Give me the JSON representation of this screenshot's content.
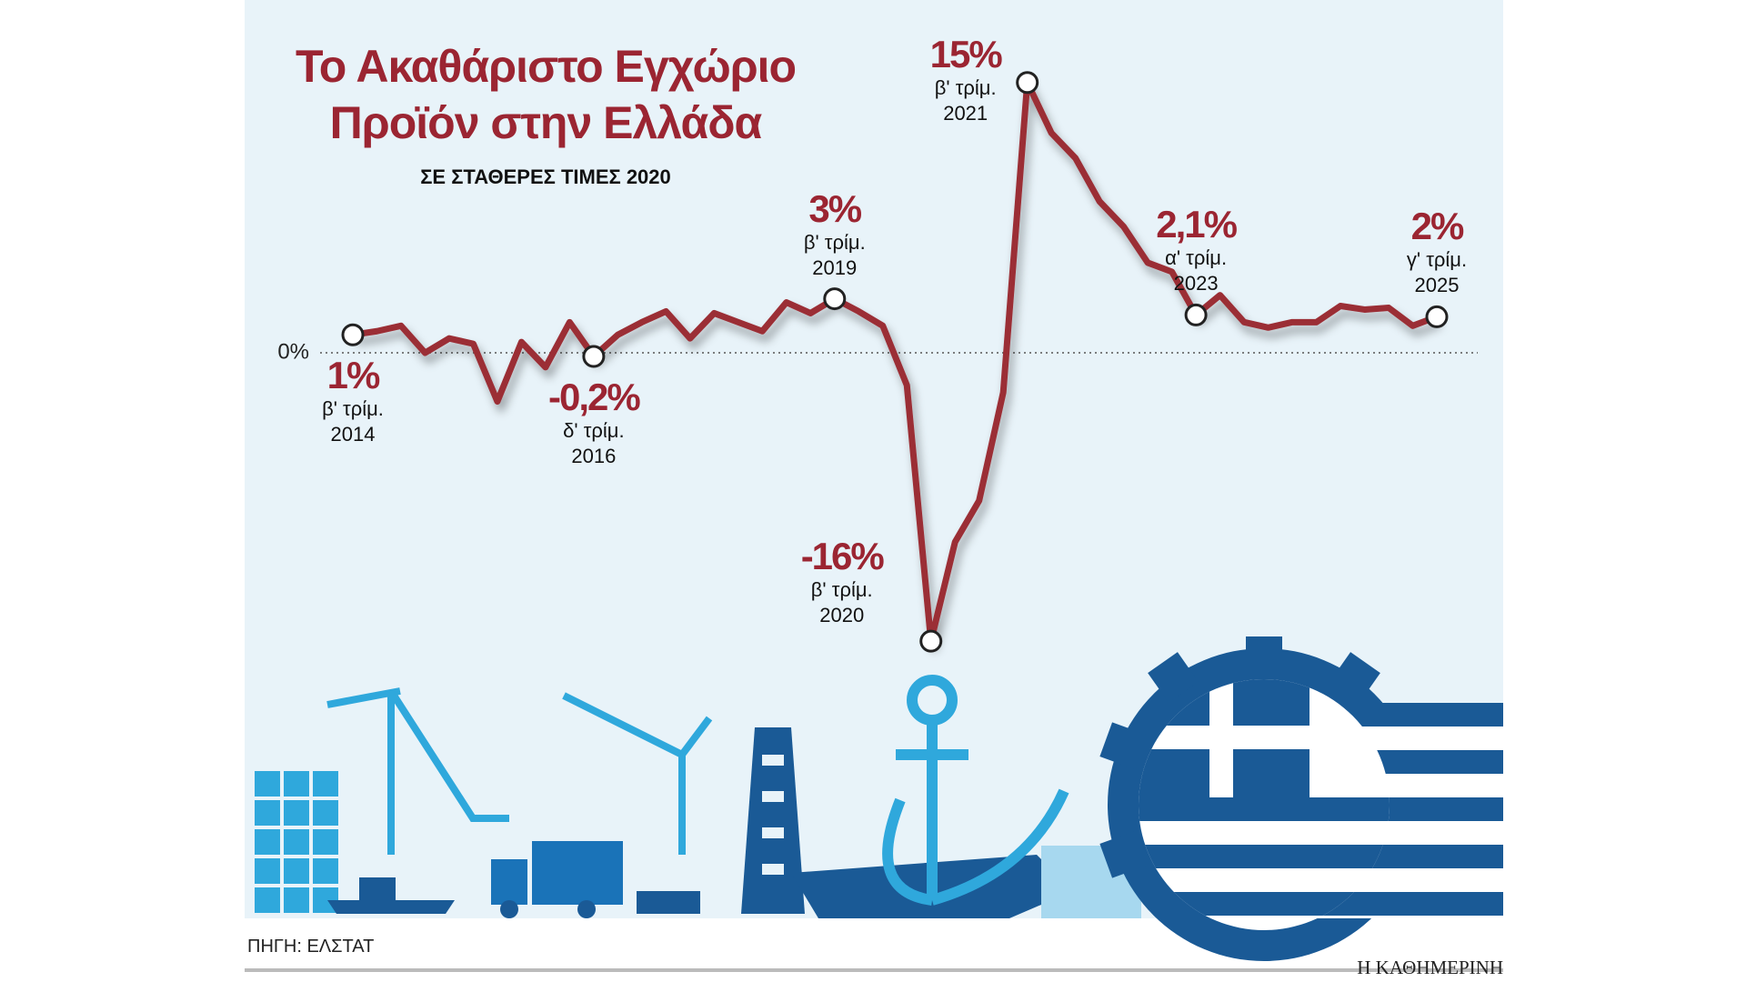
{
  "chart_data": {
    "type": "line",
    "title": "Το Ακαθάριστο Εγχώριο\nΠροϊόν στην Ελλάδα",
    "subtitle": "ΣΕ ΣΤΑΘΕΡΕΣ ΤΙΜΕΣ 2020",
    "source": "ΠΗΓΗ: ΕΛΣΤΑΤ",
    "credit": "Η ΚΑΘΗΜΕΡΙΝΗ",
    "color": "#9b2d35",
    "categories": [
      "β' τρίμ.\n2014",
      null,
      null,
      null,
      null,
      null,
      null,
      null,
      null,
      null,
      "δ' τρίμ.\n2016",
      null,
      null,
      null,
      null,
      null,
      null,
      null,
      null,
      null,
      "β' τρίμ.\n2019",
      null,
      null,
      null,
      "β' τρίμ.\n2020",
      null,
      null,
      null,
      "β' τρίμ.\n2021",
      null,
      null,
      null,
      null,
      null,
      null,
      "α' τρίμ.\n2023",
      null,
      null,
      null,
      null,
      null,
      null,
      null,
      null,
      null,
      "γ' τρίμ.\n2025"
    ],
    "values": [
      1,
      1.2,
      1.5,
      0,
      0.8,
      0.5,
      -2.7,
      0.6,
      -0.8,
      1.7,
      -0.2,
      1,
      1.7,
      2.3,
      0.8,
      2.2,
      1.7,
      1.2,
      2.8,
      2.2,
      3,
      2.3,
      1.5,
      -1.8,
      -16,
      -10.5,
      -8.2,
      -2.2,
      15,
      12.2,
      10.8,
      8.4,
      7,
      5,
      4.5,
      2.1,
      3.2,
      1.7,
      1.4,
      1.7,
      1.7,
      2.6,
      2.4,
      2.5,
      1.5,
      2
    ],
    "value_labels": [
      "1%",
      null,
      null,
      null,
      null,
      null,
      null,
      null,
      null,
      null,
      "-0,2%",
      null,
      null,
      null,
      null,
      null,
      null,
      null,
      null,
      null,
      "3%",
      null,
      null,
      null,
      "-16%",
      null,
      null,
      null,
      "15%",
      null,
      null,
      null,
      null,
      null,
      null,
      "2,1%",
      null,
      null,
      null,
      null,
      null,
      null,
      null,
      null,
      null,
      "2%"
    ],
    "ylim": [
      -17,
      16.5
    ],
    "yticks": [
      {
        "value": 0,
        "label": "0%"
      }
    ],
    "grid": true
  }
}
